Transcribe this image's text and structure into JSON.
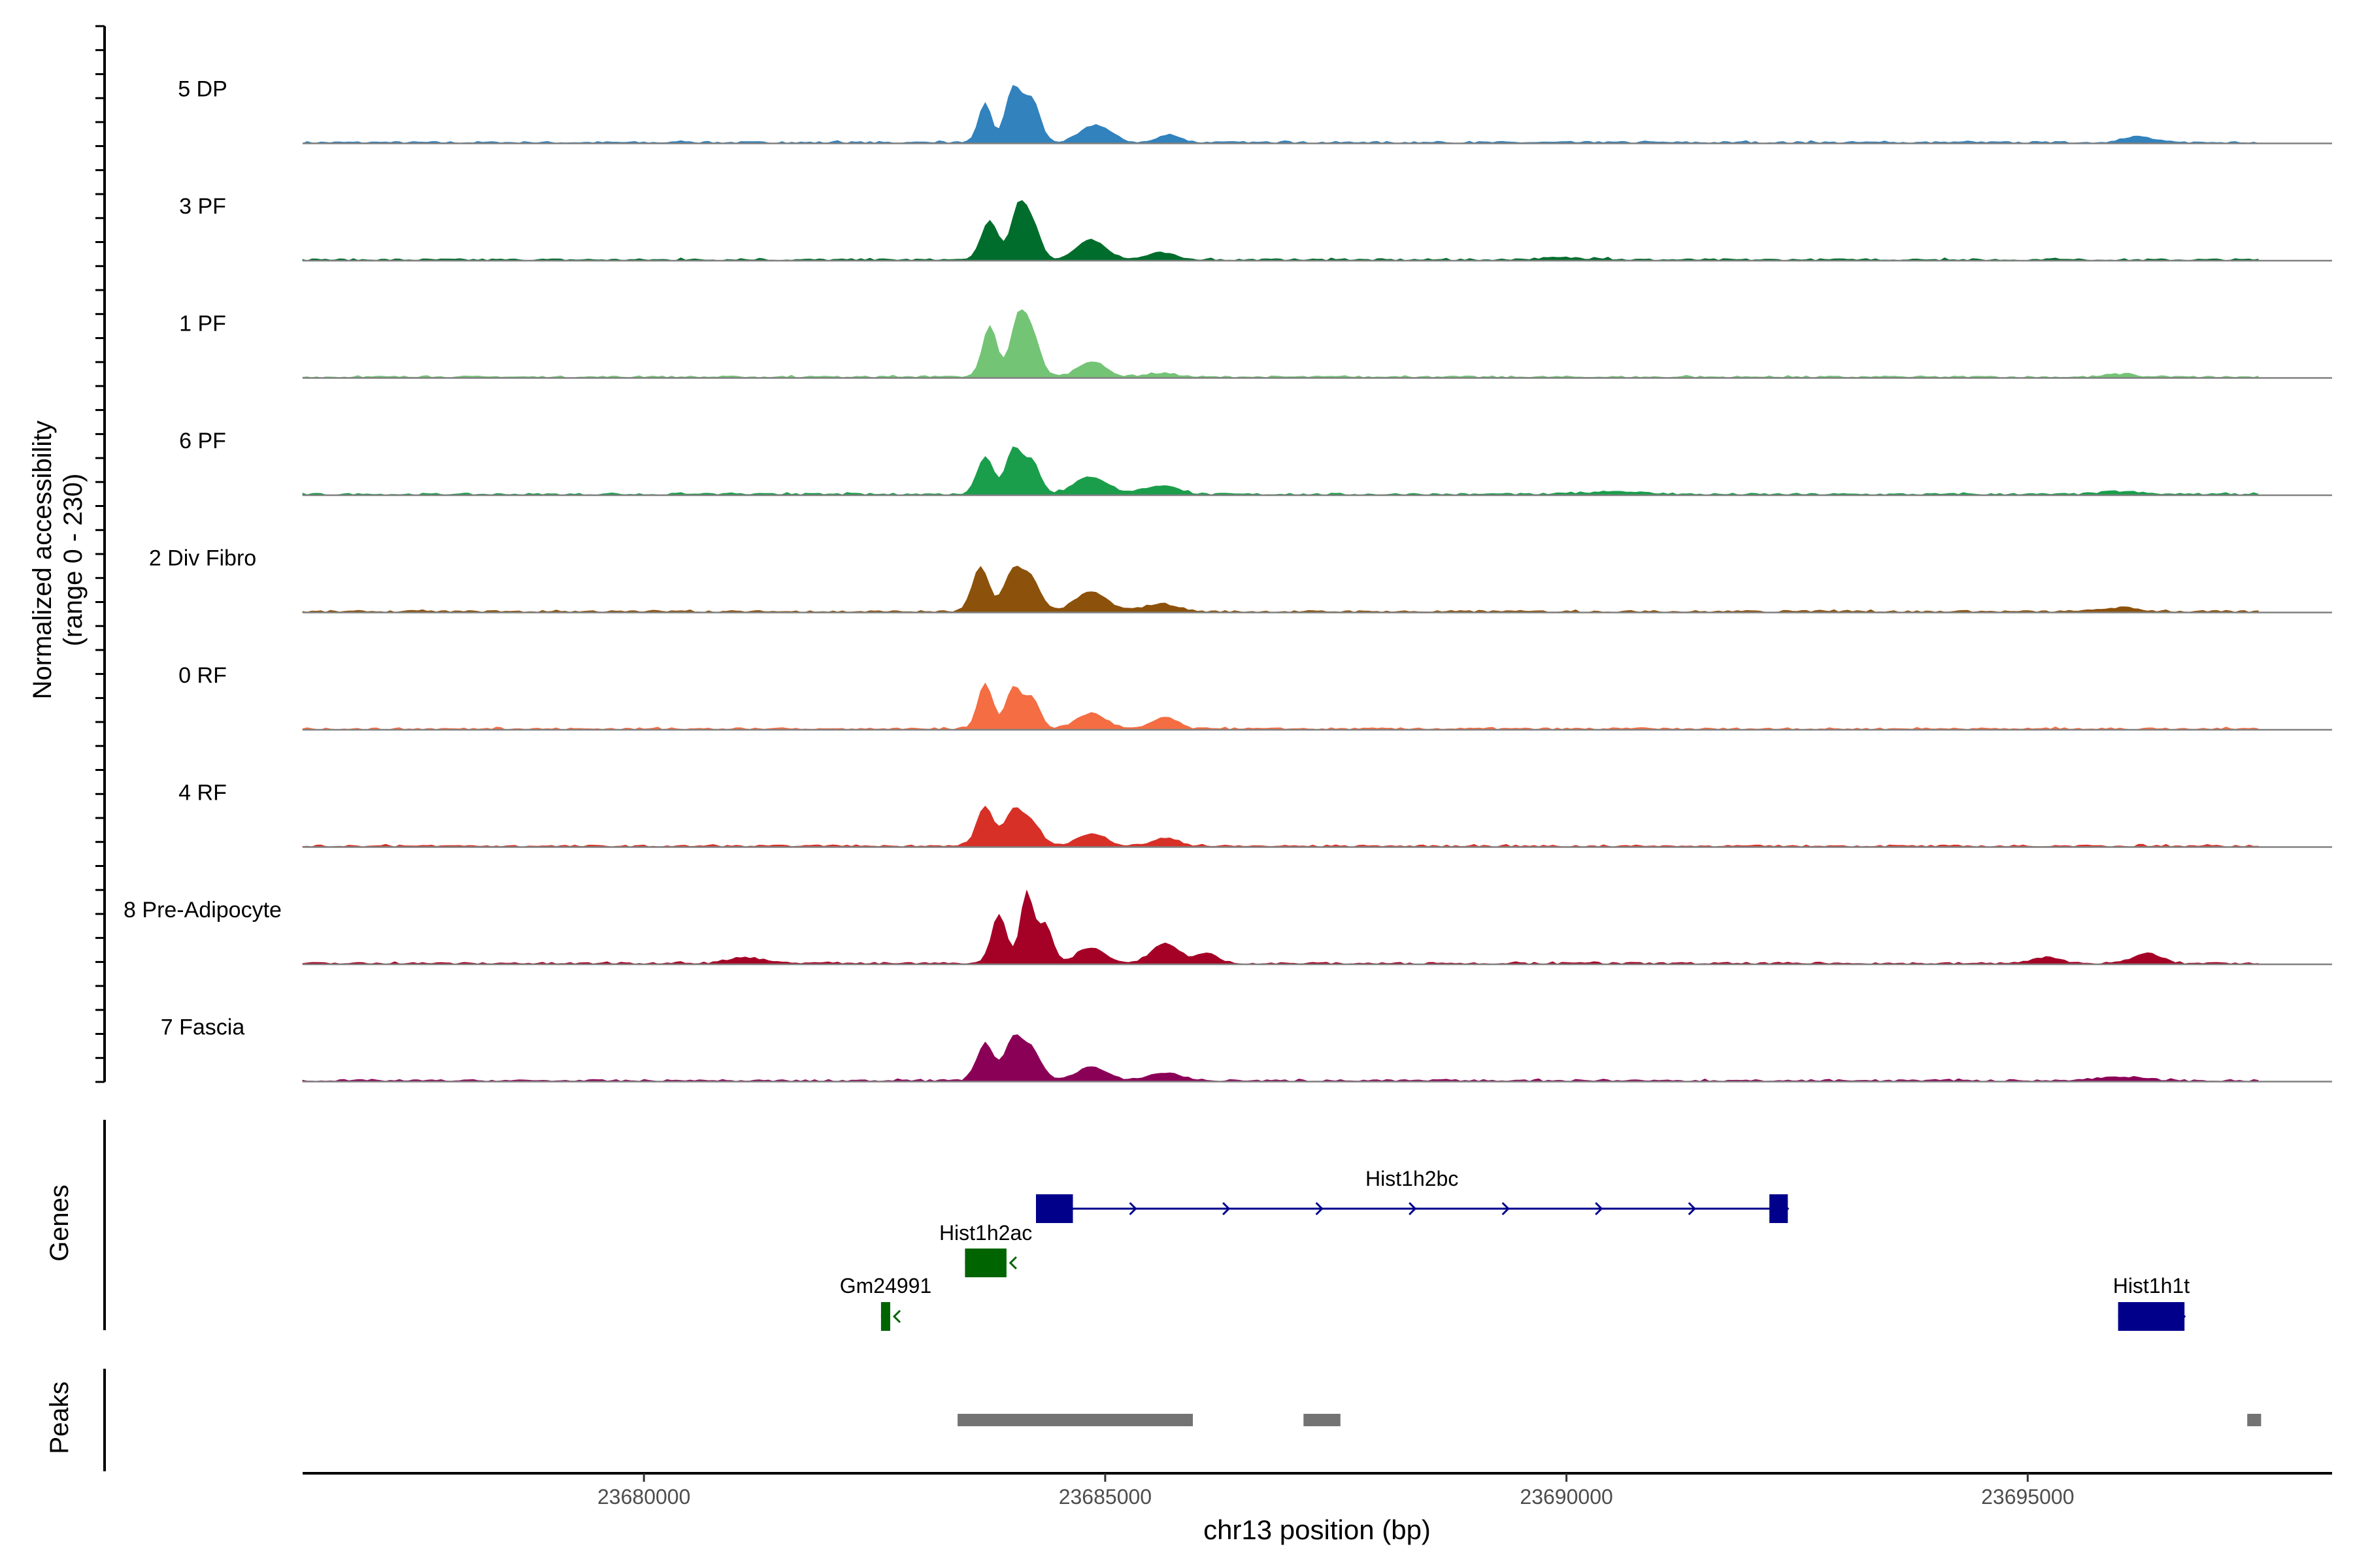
{
  "chart_data": {
    "type": "area",
    "title": "",
    "region": {
      "chrom": "chr13",
      "start": 23676300,
      "end": 23698300
    },
    "coverage": {
      "ylabel_line1": "Normalized accessibility",
      "ylabel_line2": "(range 0 - 230)",
      "ylim": [
        0,
        230
      ],
      "baseline_color": "#808080",
      "tracks": [
        {
          "name": "5 DP",
          "color": "#3182bd",
          "peaks": [
            [
              23683700,
              40,
              70
            ],
            [
              23684000,
              55,
              80
            ],
            [
              23684200,
              45,
              90
            ],
            [
              23684900,
              18,
              160
            ],
            [
              23685700,
              8,
              120
            ],
            [
              23696200,
              6,
              150
            ]
          ]
        },
        {
          "name": "3 PF",
          "color": "#006d2c",
          "peaks": [
            [
              23683750,
              40,
              90
            ],
            [
              23684050,
              48,
              80
            ],
            [
              23684200,
              38,
              90
            ],
            [
              23684850,
              20,
              160
            ],
            [
              23685600,
              7,
              150
            ],
            [
              23690000,
              2,
              300
            ]
          ]
        },
        {
          "name": "1 PF",
          "color": "#74c476",
          "peaks": [
            [
              23683750,
              52,
              80
            ],
            [
              23684050,
              55,
              80
            ],
            [
              23684200,
              45,
              90
            ],
            [
              23684850,
              16,
              150
            ],
            [
              23685600,
              4,
              160
            ],
            [
              23696000,
              3,
              150
            ]
          ]
        },
        {
          "name": "6 PF",
          "color": "#1b9e4b",
          "peaks": [
            [
              23683700,
              38,
              90
            ],
            [
              23684000,
              45,
              80
            ],
            [
              23684200,
              35,
              90
            ],
            [
              23684850,
              18,
              180
            ],
            [
              23685600,
              9,
              180
            ],
            [
              23690500,
              3,
              300
            ],
            [
              23696000,
              3,
              200
            ]
          ]
        },
        {
          "name": "2 Div Fibro",
          "color": "#8c510a",
          "peaks": [
            [
              23683650,
              45,
              90
            ],
            [
              23684000,
              40,
              100
            ],
            [
              23684200,
              32,
              100
            ],
            [
              23684850,
              20,
              170
            ],
            [
              23685600,
              8,
              180
            ],
            [
              23696000,
              4,
              200
            ]
          ]
        },
        {
          "name": "0 RF",
          "color": "#f46d43",
          "peaks": [
            [
              23683700,
              46,
              80
            ],
            [
              23684000,
              40,
              80
            ],
            [
              23684200,
              32,
              90
            ],
            [
              23684850,
              16,
              160
            ],
            [
              23685650,
              12,
              130
            ]
          ]
        },
        {
          "name": "4 RF",
          "color": "#d73027",
          "peaks": [
            [
              23683700,
              40,
              90
            ],
            [
              23684000,
              35,
              90
            ],
            [
              23684200,
              25,
              100
            ],
            [
              23684850,
              12,
              160
            ],
            [
              23685650,
              8,
              150
            ]
          ]
        },
        {
          "name": "8 Pre-Adipocyte",
          "color": "#a50026",
          "peaks": [
            [
              23683850,
              50,
              80
            ],
            [
              23684150,
              72,
              70
            ],
            [
              23684350,
              40,
              80
            ],
            [
              23684850,
              16,
              150
            ],
            [
              23685650,
              20,
              150
            ],
            [
              23686100,
              10,
              120
            ],
            [
              23681100,
              6,
              200
            ],
            [
              23695200,
              6,
              150
            ],
            [
              23696300,
              10,
              150
            ]
          ]
        },
        {
          "name": "7 Fascia",
          "color": "#8b0057",
          "peaks": [
            [
              23683700,
              38,
              90
            ],
            [
              23684000,
              42,
              90
            ],
            [
              23684200,
              32,
              100
            ],
            [
              23684850,
              14,
              160
            ],
            [
              23685650,
              8,
              180
            ],
            [
              23696000,
              4,
              250
            ]
          ]
        }
      ]
    },
    "genes": {
      "label": "Genes",
      "items": [
        {
          "name": "Hist1h2bc",
          "start": 23684250,
          "end": 23692400,
          "strand": "+",
          "color": "#00008b",
          "exons": [
            [
              23684250,
              23684650
            ],
            [
              23692200,
              23692400
            ]
          ]
        },
        {
          "name": "Hist1h2ac",
          "start": 23683480,
          "end": 23683930,
          "strand": "-",
          "color": "#006400",
          "exons": [
            [
              23683480,
              23683930
            ]
          ]
        },
        {
          "name": "Gm24991",
          "start": 23682570,
          "end": 23682670,
          "strand": "-",
          "color": "#006400",
          "exons": [
            [
              23682570,
              23682670
            ]
          ]
        },
        {
          "name": "Hist1h1t",
          "start": 23695980,
          "end": 23696700,
          "strand": "+",
          "color": "#00008b",
          "exons": [
            [
              23695980,
              23696700
            ]
          ]
        }
      ]
    },
    "peaks": {
      "label": "Peaks",
      "color": "#737373",
      "items": [
        [
          23683400,
          23685950
        ],
        [
          23687150,
          23687550
        ],
        [
          23697380,
          23697530
        ]
      ]
    },
    "x_axis": {
      "label": "chr13 position (bp)",
      "ticks": [
        23680000,
        23685000,
        23690000,
        23695000
      ],
      "tick_labels": [
        "23680000",
        "23685000",
        "23690000",
        "23695000"
      ]
    }
  }
}
